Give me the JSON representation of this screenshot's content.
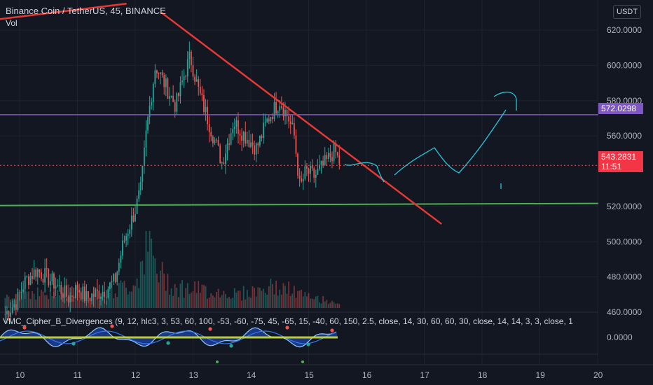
{
  "header": {
    "title": "Binance Coin / TetherUS, 45, BINANCE",
    "vol_label": "Vol",
    "currency": "USDT"
  },
  "indicator": {
    "title": "VMC_Cipher_B_Divergences (9, 12, hlc3, 3, 53, 60, 100, -53, -60, -75, 45, -65, 15, -40, 60, 150, 2.5, close, 14, 30, 60, 60, 30, close, 14, 14, 3, 3, close, 1",
    "zero_label": "0.0000"
  },
  "price_tags": {
    "resistance_value": "572.0298",
    "last_price": "543.2831",
    "countdown": "11:51"
  },
  "colors": {
    "background": "#131722",
    "up": "#26a69a",
    "down": "#ef5350",
    "trend_line": "#e53935",
    "support_line": "#4caf50",
    "resistance_line": "#7e57c2",
    "drawing": "#26c6da"
  },
  "chart_data": {
    "type": "candlestick",
    "y_ticks": [
      "620.0000",
      "600.0000",
      "580.0000",
      "560.0000",
      "520.0000",
      "500.0000",
      "480.0000",
      "460.0000"
    ],
    "x_ticks": [
      "10",
      "11",
      "12",
      "13",
      "14",
      "15",
      "16",
      "17",
      "18",
      "19",
      "20"
    ],
    "ylim": [
      455,
      635
    ],
    "xlim": [
      9.6,
      20.0
    ],
    "horizontal_lines": [
      {
        "name": "resistance",
        "price": 572.03
      },
      {
        "name": "support",
        "price": 520.5
      },
      {
        "name": "last_price",
        "price": 543.28
      }
    ],
    "trend_line": {
      "from": [
        12.45,
        630
      ],
      "to": [
        17.3,
        510
      ]
    },
    "top_left_line": {
      "from": [
        9.6,
        626
      ],
      "to": [
        11.85,
        635
      ]
    },
    "waypoints": [
      [
        9.75,
        459
      ],
      [
        9.95,
        466
      ],
      [
        10.1,
        478
      ],
      [
        10.3,
        484
      ],
      [
        10.5,
        479
      ],
      [
        10.65,
        475
      ],
      [
        10.85,
        468
      ],
      [
        11.0,
        474
      ],
      [
        11.15,
        468
      ],
      [
        11.3,
        470
      ],
      [
        11.5,
        473
      ],
      [
        11.65,
        478
      ],
      [
        11.8,
        500
      ],
      [
        12.0,
        518
      ],
      [
        12.1,
        530
      ],
      [
        12.2,
        565
      ],
      [
        12.35,
        600
      ],
      [
        12.5,
        590
      ],
      [
        12.7,
        577
      ],
      [
        12.85,
        595
      ],
      [
        12.95,
        605
      ],
      [
        13.1,
        585
      ],
      [
        13.3,
        565
      ],
      [
        13.5,
        545
      ],
      [
        13.7,
        568
      ],
      [
        13.9,
        560
      ],
      [
        14.1,
        553
      ],
      [
        14.3,
        570
      ],
      [
        14.5,
        580
      ],
      [
        14.65,
        570
      ],
      [
        14.75,
        560
      ],
      [
        14.85,
        530
      ],
      [
        14.95,
        540
      ],
      [
        15.1,
        537
      ],
      [
        15.3,
        545
      ],
      [
        15.45,
        552
      ],
      [
        15.55,
        543
      ]
    ],
    "volume_profile": [
      [
        9.65,
        0.1
      ],
      [
        10.0,
        0.25
      ],
      [
        10.5,
        0.2
      ],
      [
        11.0,
        0.25
      ],
      [
        11.5,
        0.2
      ],
      [
        11.8,
        0.3
      ],
      [
        12.0,
        0.35
      ],
      [
        12.2,
        0.95
      ],
      [
        12.4,
        0.5
      ],
      [
        12.7,
        0.3
      ],
      [
        13.2,
        0.25
      ],
      [
        13.8,
        0.2
      ],
      [
        14.4,
        0.3
      ],
      [
        14.7,
        0.25
      ],
      [
        15.0,
        0.15
      ],
      [
        15.55,
        0.08
      ]
    ],
    "volume_max_value": 1
  }
}
